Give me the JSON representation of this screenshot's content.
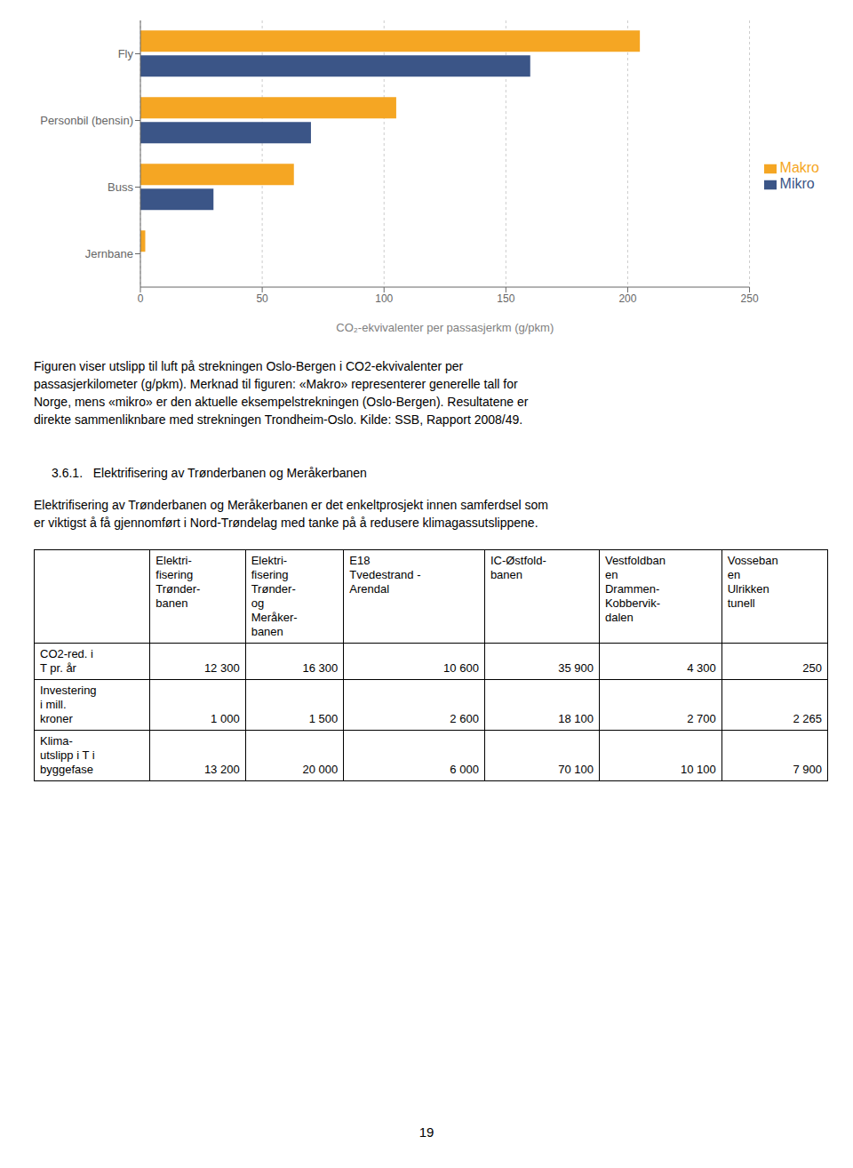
{
  "chart_data": {
    "type": "bar",
    "orientation": "horizontal",
    "categories": [
      "Fly",
      "Personbil (bensin)",
      "Buss",
      "Jernbane"
    ],
    "series": [
      {
        "name": "Makro",
        "color": "#f5a623",
        "values": [
          205,
          105,
          63,
          2
        ]
      },
      {
        "name": "Mikro",
        "color": "#3b5587",
        "values": [
          160,
          70,
          30,
          0
        ]
      }
    ],
    "xlabel": "CO₂-ekvivalenter per passasjerkm (g/pkm)",
    "xlim": [
      0,
      250
    ],
    "xticks": [
      0,
      50,
      100,
      150,
      200,
      250
    ],
    "grid": true,
    "legend": "right"
  },
  "caption_lines": [
    "Figuren viser utslipp til luft på strekningen Oslo-Bergen i CO2-ekvivalenter per",
    "passasjerkilometer (g/pkm). Merknad til figuren: «Makro» representerer generelle tall for",
    "Norge, mens «mikro» er den aktuelle eksempelstrekningen (Oslo-Bergen). Resultatene er",
    "direkte sammenliknbare med strekningen Trondheim-Oslo. Kilde: SSB, Rapport 2008/49."
  ],
  "section_heading": "3.6.1.   Elektrifisering av Trønderbanen og Meråkerbanen",
  "section_text_lines": [
    "Elektrifisering av Trønderbanen og Meråkerbanen er det enkeltprosjekt innen samferdsel som",
    "er viktigst å få gjennomført i Nord-Trøndelag med tanke på å redusere klimagassutslippene."
  ],
  "table": {
    "col_headers": [
      "Elektri-\nfisering\nTrønder-\nbanen",
      "Elektri-\nfisering\nTrønder-\nog\nMeråker-\nbanen",
      "E18\nTvedestrand -\nArendal",
      "IC-Østfold-\nbanen",
      "Vestfoldban\nen\nDrammen-\nKobbervik-\ndalen",
      "Vosseban\nen\nUlrikken\ntunell"
    ],
    "row_headers": [
      "CO2-red. i\nT pr. år",
      "Investering\ni mill.\nkroner",
      "Klima-\nutslipp i T i\nbyggefase"
    ],
    "data": [
      [
        "12 300",
        "16 300",
        "10 600",
        "35 900",
        "4 300",
        "250"
      ],
      [
        "1 000",
        "1 500",
        "2 600",
        "18 100",
        "2 700",
        "2 265"
      ],
      [
        "13 200",
        "20 000",
        "6 000",
        "70 100",
        "10 100",
        "7 900"
      ]
    ]
  },
  "page_number": "19"
}
